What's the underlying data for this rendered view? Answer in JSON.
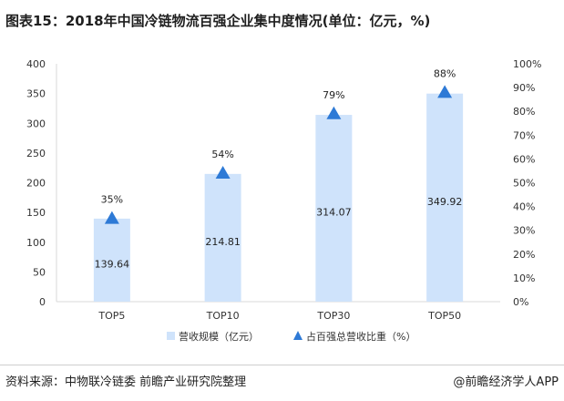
{
  "header": {
    "title": "图表15：2018年中国冷链物流百强企业集中度情况(单位：亿元，%)"
  },
  "chart_data": {
    "type": "bar",
    "categories": [
      "TOP5",
      "TOP10",
      "TOP30",
      "TOP50"
    ],
    "series": [
      {
        "name": "营收规模（亿元）",
        "type": "bar",
        "axis": "left",
        "values": [
          139.64,
          214.81,
          314.07,
          349.92
        ],
        "labels": [
          "139.64",
          "214.81",
          "314.07",
          "349.92"
        ]
      },
      {
        "name": "占百强总营收比重（%）",
        "type": "marker",
        "axis": "right",
        "values": [
          35,
          54,
          79,
          88
        ],
        "labels": [
          "35%",
          "54%",
          "79%",
          "88%"
        ]
      }
    ],
    "y_left": {
      "min": 0,
      "max": 400,
      "ticks": [
        "0",
        "50",
        "100",
        "150",
        "200",
        "250",
        "300",
        "350",
        "400"
      ]
    },
    "y_right": {
      "min": 0,
      "max": 100,
      "ticks": [
        "0%",
        "10%",
        "20%",
        "30%",
        "40%",
        "50%",
        "60%",
        "70%",
        "80%",
        "90%",
        "100%"
      ]
    },
    "legend_position": "bottom",
    "grid": false,
    "colors": {
      "bar": "#cfe3fb",
      "marker": "#2e7ad6",
      "text": "#222222"
    }
  },
  "footer": {
    "source": "资料来源：中物联冷链委 前瞻产业研究院整理",
    "brand": "@前瞻经济学人APP"
  }
}
